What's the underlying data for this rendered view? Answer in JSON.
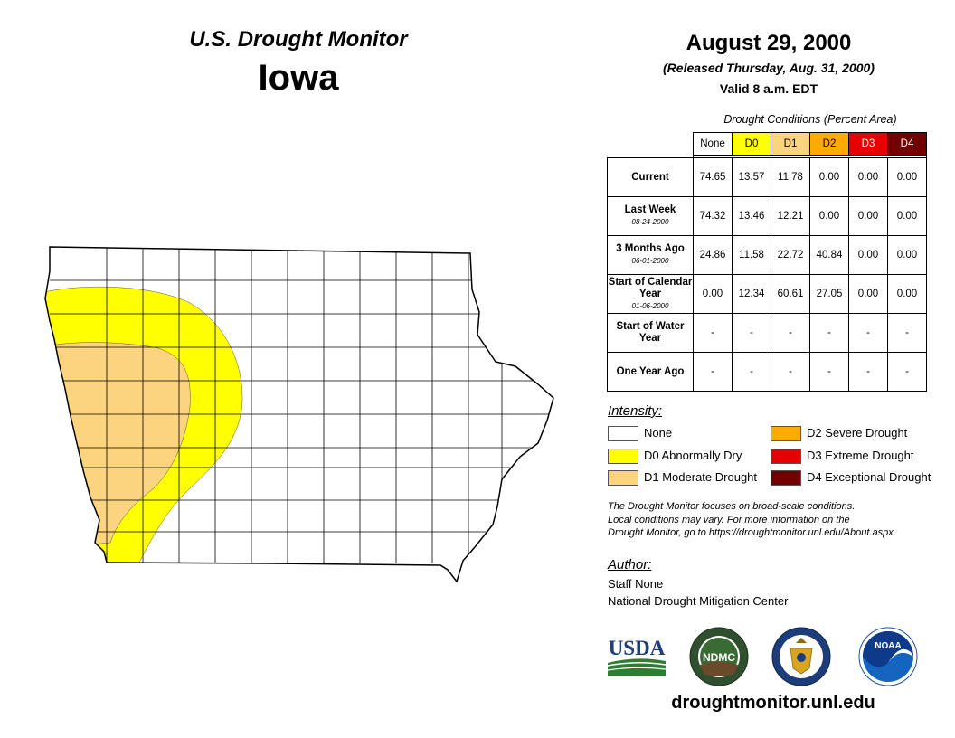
{
  "header": {
    "subtitle": "U.S. Drought Monitor",
    "state": "Iowa",
    "date": "August 29, 2000",
    "released": "(Released Thursday, Aug. 31, 2000)",
    "valid": "Valid 8 a.m. EDT"
  },
  "table": {
    "caption": "Drought Conditions (Percent Area)",
    "columns": [
      {
        "label": "None",
        "color": "#ffffff",
        "text_color": "#000000"
      },
      {
        "label": "D0",
        "color": "#ffff00",
        "text_color": "#000000"
      },
      {
        "label": "D1",
        "color": "#fcd37f",
        "text_color": "#000000"
      },
      {
        "label": "D2",
        "color": "#ffaa00",
        "text_color": "#000000"
      },
      {
        "label": "D3",
        "color": "#e60000",
        "text_color": "#ffffff"
      },
      {
        "label": "D4",
        "color": "#730000",
        "text_color": "#ffffff"
      }
    ],
    "rows": [
      {
        "label": "Current",
        "sublabel": "",
        "values": [
          "74.65",
          "13.57",
          "11.78",
          "0.00",
          "0.00",
          "0.00"
        ]
      },
      {
        "label": "Last Week",
        "sublabel": "08-24-2000",
        "values": [
          "74.32",
          "13.46",
          "12.21",
          "0.00",
          "0.00",
          "0.00"
        ]
      },
      {
        "label": "3 Months Ago",
        "sublabel": "06-01-2000",
        "values": [
          "24.86",
          "11.58",
          "22.72",
          "40.84",
          "0.00",
          "0.00"
        ]
      },
      {
        "label": "Start of Calendar Year",
        "sublabel": "01-06-2000",
        "values": [
          "0.00",
          "12.34",
          "60.61",
          "27.05",
          "0.00",
          "0.00"
        ]
      },
      {
        "label": "Start of Water Year",
        "sublabel": "",
        "values": [
          "-",
          "-",
          "-",
          "-",
          "-",
          "-"
        ]
      },
      {
        "label": "One Year Ago",
        "sublabel": "",
        "values": [
          "-",
          "-",
          "-",
          "-",
          "-",
          "-"
        ]
      }
    ]
  },
  "legend": {
    "title": "Intensity:",
    "items": [
      {
        "label": "None",
        "color": "#ffffff"
      },
      {
        "label": "D0 Abnormally Dry",
        "color": "#ffff00"
      },
      {
        "label": "D1 Moderate Drought",
        "color": "#fcd37f"
      },
      {
        "label": "D2 Severe Drought",
        "color": "#ffaa00"
      },
      {
        "label": "D3 Extreme Drought",
        "color": "#e60000"
      },
      {
        "label": "D4 Exceptional Drought",
        "color": "#730000"
      }
    ]
  },
  "note": {
    "line1": "The Drought Monitor focuses on broad-scale conditions.",
    "line2": "Local conditions may vary. For more information on the",
    "line3": "Drought Monitor, go to https://droughtmonitor.unl.edu/About.aspx"
  },
  "author": {
    "title": "Author:",
    "name": "Staff None",
    "org": "National Drought Mitigation Center"
  },
  "logos": {
    "usda": "USDA",
    "ndmc": "NDMC",
    "noaa": "NOAA"
  },
  "footer_url": "droughtmonitor.unl.edu",
  "map": {
    "region": "Iowa",
    "colors": {
      "d0": "#ffff00",
      "d1": "#fcd37f",
      "outline": "#000000"
    }
  }
}
